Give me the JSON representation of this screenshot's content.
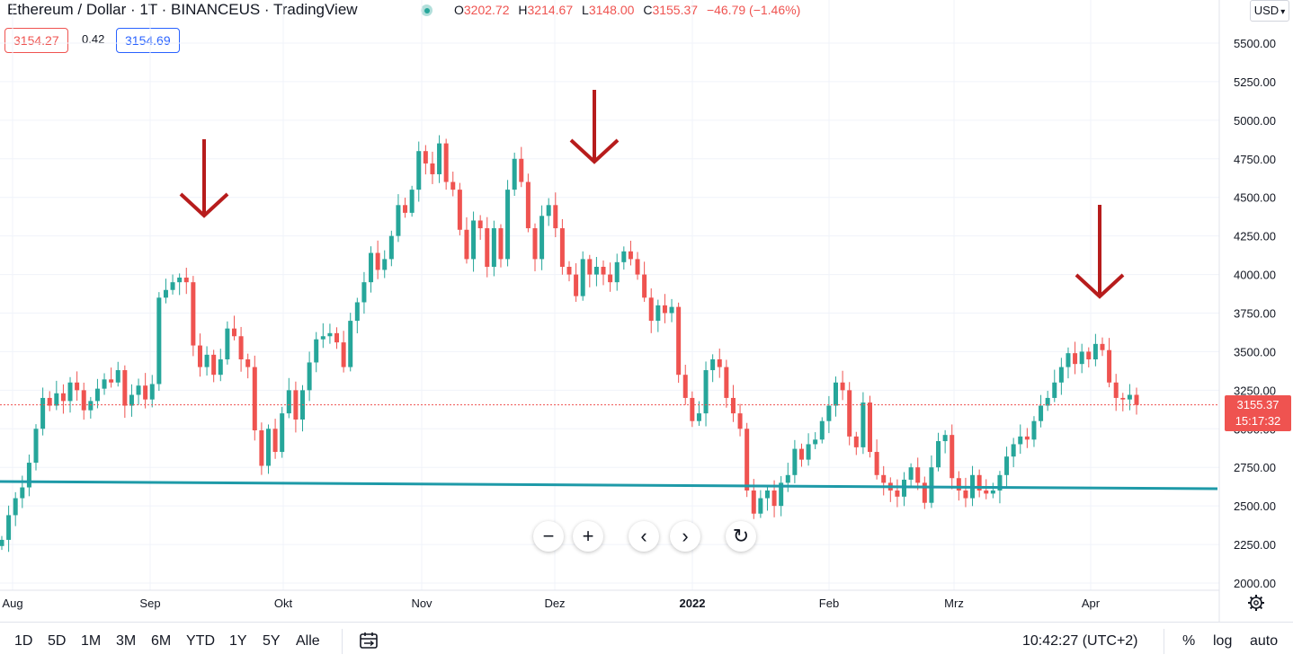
{
  "header": {
    "title": "Ethereum / Dollar · 1T · BINANCEUS · TradingView",
    "ohlc": [
      {
        "key": "O",
        "value": "3202.72"
      },
      {
        "key": "H",
        "value": "3214.67"
      },
      {
        "key": "L",
        "value": "3148.00"
      },
      {
        "key": "C",
        "value": "3155.37"
      }
    ],
    "change": "−46.79 (−1.46%)",
    "bid": "3154.27",
    "spread": "0.42",
    "ask": "3154.69",
    "currency": "USD"
  },
  "colors": {
    "up": "#26a69a",
    "down": "#ef5350",
    "trendline": "#1e9aa8",
    "arrow": "#b71c1c",
    "grid": "#f0f3fa"
  },
  "chart_data": {
    "type": "candlestick",
    "symbol": "Ethereum / Dollar",
    "interval": "1T",
    "y_ticks": [
      5500,
      5250,
      5000,
      4750,
      4500,
      4250,
      4000,
      3750,
      3500,
      3250,
      3000,
      2750,
      2500,
      2250,
      2000
    ],
    "y_tick_labels": [
      "5500.00",
      "5250.00",
      "5000.00",
      "4750.00",
      "4500.00",
      "4250.00",
      "4000.00",
      "3750.00",
      "3500.00",
      "3250.00",
      "3000.00",
      "2750.00",
      "2500.00",
      "2250.00",
      "2000.00"
    ],
    "x_labels": [
      "Aug",
      "Sep",
      "Okt",
      "Nov",
      "Dez",
      "2022",
      "Feb",
      "Mrz",
      "Apr"
    ],
    "last_price": "3155.37",
    "countdown": "15:17:32",
    "closes": [
      2280,
      2440,
      2550,
      2620,
      2780,
      3000,
      3200,
      3150,
      3230,
      3180,
      3300,
      3250,
      3120,
      3180,
      3260,
      3320,
      3300,
      3380,
      3150,
      3220,
      3280,
      3190,
      3290,
      3850,
      3900,
      3950,
      3980,
      3950,
      3540,
      3400,
      3480,
      3350,
      3450,
      3650,
      3600,
      3450,
      3400,
      2990,
      2760,
      3000,
      2850,
      3100,
      3250,
      3060,
      3250,
      3430,
      3580,
      3600,
      3620,
      3560,
      3400,
      3700,
      3820,
      3950,
      4140,
      4030,
      4100,
      4250,
      4450,
      4400,
      4550,
      4800,
      4720,
      4650,
      4850,
      4600,
      4550,
      4290,
      4100,
      4350,
      4300,
      4050,
      4300,
      4100,
      4550,
      4750,
      4600,
      4300,
      4100,
      4380,
      4450,
      4300,
      4050,
      4000,
      3860,
      4100,
      4000,
      4050,
      4000,
      3950,
      4080,
      4150,
      4100,
      4000,
      3850,
      3700,
      3800,
      3750,
      3790,
      3350,
      3200,
      3050,
      3100,
      3380,
      3450,
      3400,
      3200,
      3100,
      3000,
      2600,
      2450,
      2550,
      2600,
      2500,
      2650,
      2700,
      2870,
      2800,
      2900,
      2930,
      3050,
      3150,
      3300,
      3250,
      2950,
      2880,
      3170,
      2850,
      2700,
      2650,
      2600,
      2560,
      2670,
      2750,
      2650,
      2520,
      2750,
      2920,
      2960,
      2680,
      2600,
      2550,
      2700,
      2600,
      2580,
      2600,
      2700,
      2820,
      2900,
      2950,
      2930,
      3050,
      3150,
      3200,
      3300,
      3400,
      3490,
      3420,
      3500,
      3450,
      3550,
      3510,
      3300,
      3200,
      3190,
      3220,
      3155
    ],
    "annotations": [
      "down-arrow",
      "down-arrow",
      "down-arrow",
      "trendline"
    ]
  },
  "controls": {
    "zoom_out": "−",
    "zoom_in": "+",
    "scroll_left": "‹",
    "scroll_right": "›",
    "reset": "↻"
  },
  "bottom_bar": {
    "ranges": [
      "1D",
      "5D",
      "1M",
      "3M",
      "6M",
      "YTD",
      "1Y",
      "5Y",
      "Alle"
    ],
    "time": "10:42:27 (UTC+2)",
    "percent": "%",
    "log": "log",
    "auto": "auto"
  }
}
